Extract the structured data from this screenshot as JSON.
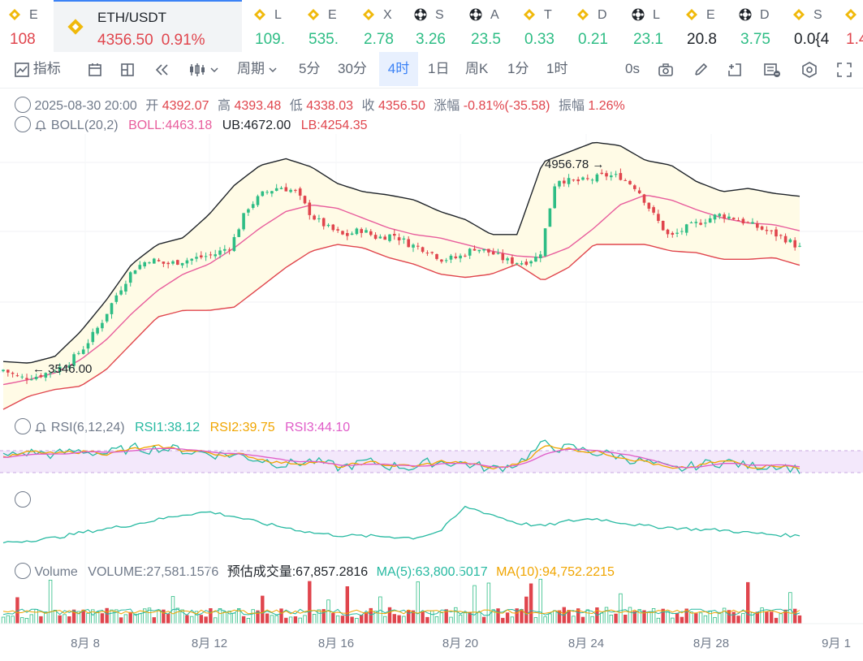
{
  "ticker": {
    "items": [
      {
        "name": "E",
        "price": "108",
        "dir": "down",
        "icon": "binance-icon"
      },
      {
        "name": "L",
        "price": "109.",
        "dir": "up",
        "icon": "binance-icon"
      },
      {
        "name": "E",
        "price": "535.",
        "dir": "up",
        "icon": "binance-icon"
      },
      {
        "name": "X",
        "price": "2.78",
        "dir": "up",
        "icon": "binance-icon"
      },
      {
        "name": "S",
        "price": "3.26",
        "dir": "up",
        "icon": "token-icon"
      },
      {
        "name": "A",
        "price": "23.5",
        "dir": "up",
        "icon": "token-icon"
      },
      {
        "name": "T",
        "price": "0.33",
        "dir": "up",
        "icon": "binance-icon"
      },
      {
        "name": "D",
        "price": "0.21",
        "dir": "up",
        "icon": "binance-icon"
      },
      {
        "name": "L",
        "price": "23.1",
        "dir": "up",
        "icon": "token-icon"
      },
      {
        "name": "E",
        "price": "20.8",
        "dir": "flat",
        "icon": "binance-icon"
      },
      {
        "name": "D",
        "price": "3.75",
        "dir": "up",
        "icon": "token-icon"
      },
      {
        "name": "S",
        "price": "0.0{4",
        "dir": "flat",
        "icon": "binance-icon"
      },
      {
        "name": "",
        "price": "1.4",
        "dir": "down",
        "icon": "binance-icon"
      }
    ],
    "active": {
      "symbol": "ETH/USDT",
      "price": "4356.50",
      "change": "0.91%"
    }
  },
  "toolbar": {
    "indicators_label": "指标",
    "period_label": "周期",
    "intervals": [
      "5分",
      "30分",
      "4时",
      "1日",
      "周K",
      "1分",
      "1时"
    ],
    "selected_interval": "4时",
    "countdown": "0s"
  },
  "ohlc": {
    "date": "2025-08-30 20:00",
    "open_label": "开",
    "open": "4392.07",
    "high_label": "高",
    "high": "4393.48",
    "low_label": "低",
    "low": "4338.03",
    "close_label": "收",
    "close": "4356.50",
    "change_label": "涨幅",
    "change": "-0.81%(-35.58)",
    "amp_label": "振幅",
    "amp": "1.26%"
  },
  "boll": {
    "label": "BOLL(20,2)",
    "mid": "BOLL:4463.18",
    "ub": "UB:4672.00",
    "lb": "LB:4254.35"
  },
  "rsi": {
    "label": "RSI(6,12,24)",
    "rsi1": "RSI1:38.12",
    "rsi2": "RSI2:39.75",
    "rsi3": "RSI3:44.10"
  },
  "volume": {
    "label": "Volume",
    "value": "VOLUME:27,581.1576",
    "est": "预估成交量:67,857.2816",
    "ma5": "MA(5):63,800.5017",
    "ma10": "MA(10):94,752.2215"
  },
  "colors": {
    "up": "#2ebd85",
    "down": "#e0454d",
    "boll_mid": "#e85d9c",
    "ub": "#1e2329",
    "lb": "#e0454d",
    "band_fill": "#fffbe6",
    "rsi1": "#26b9a1",
    "rsi2": "#f0a500",
    "rsi3": "#e05cc8",
    "accent": "#3b82f6"
  },
  "chart_data": {
    "type": "candlestick",
    "x_ticks": [
      "8月 8",
      "8月 12",
      "8月 16",
      "8月 20",
      "8月 24",
      "8月 28",
      "9月 1"
    ],
    "annotations": [
      {
        "text": "4956.78",
        "kind": "high"
      },
      {
        "text": "3546.00",
        "kind": "low"
      }
    ],
    "close_anchors": [
      3620,
      3570,
      3580,
      3610,
      3660,
      3760,
      3900,
      4080,
      4230,
      4290,
      4260,
      4280,
      4300,
      4320,
      4370,
      4600,
      4690,
      4730,
      4700,
      4550,
      4480,
      4430,
      4470,
      4420,
      4440,
      4380,
      4350,
      4290,
      4300,
      4360,
      4330,
      4280,
      4270,
      4310,
      4780,
      4760,
      4770,
      4800,
      4790,
      4720,
      4560,
      4420,
      4480,
      4520,
      4560,
      4540,
      4500,
      4460,
      4420,
      4360
    ],
    "boll_mid_anchors": [
      3530,
      3560,
      3600,
      3680,
      3800,
      3960,
      4100,
      4200,
      4260,
      4360,
      4480,
      4580,
      4620,
      4600,
      4540,
      4480,
      4440,
      4420,
      4380,
      4340,
      4310,
      4300,
      4360,
      4480,
      4620,
      4680,
      4650,
      4590,
      4540,
      4510,
      4500,
      4463
    ],
    "ub_anchors": [
      3670,
      3660,
      3700,
      3850,
      4040,
      4260,
      4380,
      4420,
      4560,
      4740,
      4860,
      4900,
      4850,
      4750,
      4700,
      4680,
      4650,
      4580,
      4530,
      4440,
      4440,
      4880,
      4940,
      5000,
      4980,
      4890,
      4860,
      4760,
      4700,
      4720,
      4690,
      4672
    ],
    "lb_anchors": [
      3380,
      3460,
      3500,
      3520,
      3620,
      3780,
      3940,
      3980,
      3980,
      4000,
      4120,
      4240,
      4340,
      4380,
      4360,
      4300,
      4260,
      4200,
      4180,
      4200,
      4260,
      4160,
      4240,
      4380,
      4380,
      4380,
      4340,
      4330,
      4290,
      4290,
      4300,
      4254
    ],
    "y_range": [
      3400,
      5050
    ],
    "rsi_anchors": [
      55,
      62,
      58,
      64,
      60,
      66,
      68,
      64,
      60,
      58,
      52,
      46,
      50,
      40,
      48,
      44,
      42,
      50,
      46,
      38,
      48,
      72,
      66,
      62,
      56,
      48,
      36,
      44,
      50,
      42,
      46,
      38
    ],
    "secondary_anchors": [
      0.15,
      0.18,
      0.22,
      0.3,
      0.36,
      0.42,
      0.5,
      0.58,
      0.62,
      0.55,
      0.45,
      0.38,
      0.3,
      0.26,
      0.25,
      0.24,
      0.22,
      0.32,
      0.7,
      0.58,
      0.45,
      0.4,
      0.48,
      0.52,
      0.46,
      0.4,
      0.38,
      0.35,
      0.34,
      0.3,
      0.27,
      0.25
    ]
  }
}
